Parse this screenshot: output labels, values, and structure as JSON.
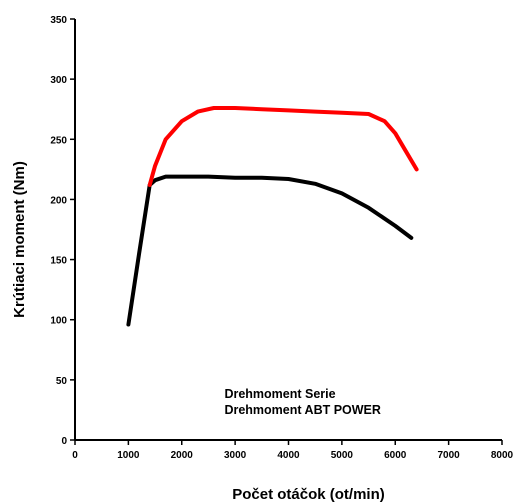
{
  "chart_data": {
    "type": "line",
    "xlabel": "Počet otáčok (ot/min)",
    "ylabel": "Krútiaci moment (Nm)",
    "xlim": [
      0,
      8000
    ],
    "ylim": [
      0,
      350
    ],
    "xticks": [
      "0",
      "1000",
      "2000",
      "3000",
      "4000",
      "5000",
      "6000",
      "7000",
      "8000"
    ],
    "yticks": [
      "0",
      "50",
      "100",
      "150",
      "200",
      "250",
      "300",
      "350"
    ],
    "grid": false,
    "legend_position": "bottom-center",
    "series": [
      {
        "name": "Drehmoment Serie",
        "color": "#000000",
        "x": [
          1000,
          1200,
          1400,
          1500,
          1700,
          2000,
          2500,
          3000,
          3500,
          4000,
          4500,
          5000,
          5500,
          6000,
          6300
        ],
        "y": [
          96,
          155,
          212,
          216,
          219,
          219,
          219,
          218,
          218,
          217,
          213,
          205,
          193,
          178,
          168
        ]
      },
      {
        "name": "Drehmoment ABT POWER",
        "color": "#ff0000",
        "x": [
          1400,
          1500,
          1700,
          2000,
          2300,
          2600,
          3000,
          3500,
          4000,
          4500,
          5000,
          5500,
          5800,
          6000,
          6200,
          6400
        ],
        "y": [
          212,
          228,
          250,
          265,
          273,
          276,
          276,
          275,
          274,
          273,
          272,
          271,
          265,
          255,
          240,
          225
        ]
      }
    ]
  }
}
